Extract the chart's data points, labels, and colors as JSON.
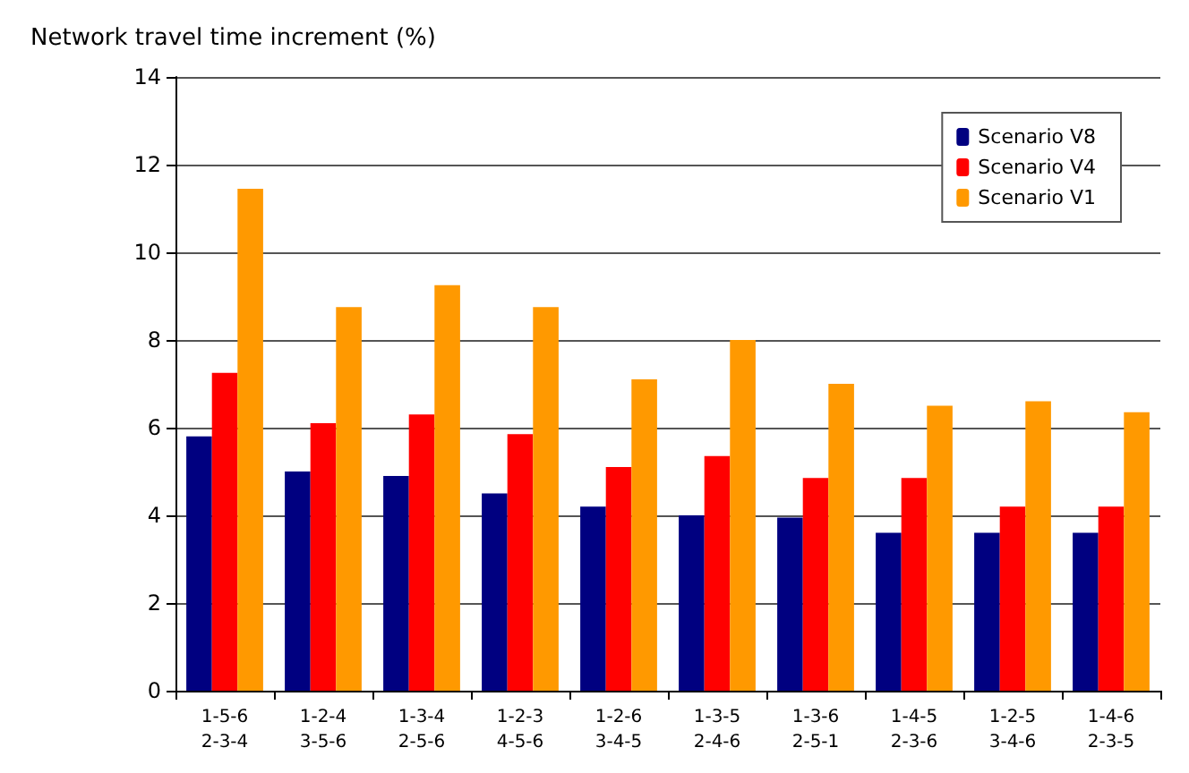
{
  "chart_data": {
    "type": "bar",
    "ylabel": "Network travel time increment (%)",
    "categories": [
      "1-5-6\n2-3-4",
      "1-2-4\n3-5-6",
      "1-3-4\n2-5-6",
      "1-2-3\n4-5-6",
      "1-2-6\n3-4-5",
      "1-3-5\n2-4-6",
      "1-3-6\n2-5-1",
      "1-4-5\n2-3-6",
      "1-2-5\n3-4-6",
      "1-4-6\n2-3-5"
    ],
    "series": [
      {
        "name": "Scenario V8",
        "color": "#000080",
        "values": [
          5.8,
          5.0,
          4.9,
          4.5,
          4.2,
          4.0,
          3.95,
          3.6,
          3.6,
          3.6
        ]
      },
      {
        "name": "Scenario V4",
        "color": "#ff0000",
        "values": [
          7.25,
          6.1,
          6.3,
          5.85,
          5.1,
          5.35,
          4.85,
          4.85,
          4.2,
          4.2
        ]
      },
      {
        "name": "Scenario V1",
        "color": "#ff9900",
        "values": [
          11.45,
          8.75,
          9.25,
          8.75,
          7.1,
          8.0,
          7.0,
          6.5,
          6.6,
          6.35
        ]
      }
    ],
    "ylim": [
      0,
      14
    ],
    "yticks": [
      0,
      2,
      4,
      6,
      8,
      10,
      12,
      14
    ],
    "grid": "y",
    "legend": "top right"
  }
}
